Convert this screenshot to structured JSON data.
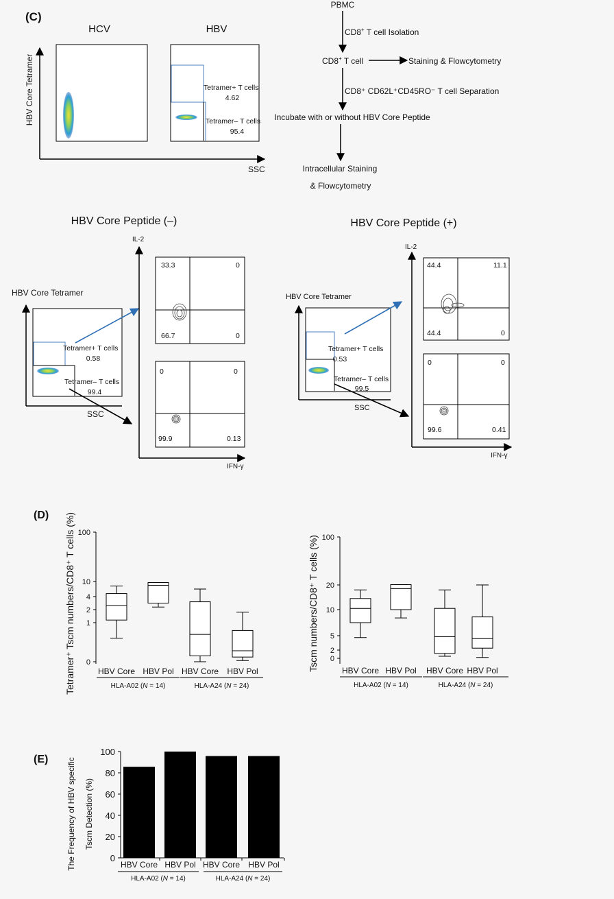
{
  "panel_c": {
    "label": "(C)",
    "hcv_title": "HCV",
    "hbv_title": "HBV",
    "ylabel": "HBV Core Tetramer",
    "xlabel": "SSC",
    "tetramer_pos_label": "Tetramer+ T cells",
    "tetramer_pos_value": "4.62",
    "tetramer_neg_label": "Tetramer– T cells",
    "tetramer_neg_value": "95.4"
  },
  "flowchart": {
    "pbmc": "PBMC",
    "step1_main": "CD8",
    "step1_sup": "+",
    "step1_rest": " T cell Isolation",
    "node2_main": "CD8",
    "node2_sup": "+",
    "node2_rest": " T cell",
    "side": "Staining & Flowcytometry",
    "step2": "CD8⁺ CD62L⁺CD45RO⁻ T cell Separation",
    "node3": "Incubate with or without HBV Core Peptide",
    "node4_l1": "Intracellular Staining",
    "node4_l2": "& Flowcytometry"
  },
  "peptide_neg": {
    "title": "HBV Core Peptide (–)",
    "tetramer_label": "HBV Core Tetramer",
    "ssc": "SSC",
    "il2": "IL-2",
    "ifng": "IFN-γ",
    "pos_label": "Tetramer+ T cells",
    "pos_value": "0.58",
    "neg_label": "Tetramer– T cells",
    "neg_value": "99.4",
    "top_q": [
      "33.3",
      "0",
      "66.7",
      "0"
    ],
    "bot_q": [
      "0",
      "0",
      "99.9",
      "0.13"
    ]
  },
  "peptide_pos": {
    "title": "HBV Core Peptide (+)",
    "tetramer_label": "HBV Core Tetramer",
    "ssc": "SSC",
    "il2": "IL-2",
    "ifng": "IFN-γ",
    "pos_label": "Tetramer+ T cells",
    "pos_value": "0.53",
    "neg_label": "Tetramer– T cells",
    "neg_value": "99.5",
    "top_q": [
      "44.4",
      "11.1",
      "44.4",
      "0"
    ],
    "bot_q": [
      "0",
      "0",
      "99.6",
      "0.41"
    ]
  },
  "panel_d": {
    "label": "(D)"
  },
  "panel_e": {
    "label": "(E)"
  },
  "chart_data": [
    {
      "type": "box",
      "ylabel": "Tetramer⁺ Tscm numbers/CD8⁺ T cells (%)",
      "yticks": [
        "0",
        "1",
        "2",
        "4",
        "10",
        "100"
      ],
      "categories": [
        "HBV Core",
        "HBV Pol",
        "HBV Core",
        "HBV Pol"
      ],
      "groups": [
        "HLA-A02 (N = 14)",
        "HLA-A24 (N = 24)"
      ],
      "boxes": [
        {
          "min": 0.6,
          "q1": 1.2,
          "median": 2.6,
          "q3": 5.2,
          "max": 8.2
        },
        {
          "min": 2.4,
          "q1": 3.0,
          "median": 8.5,
          "q3": 9.6,
          "max": 9.6
        },
        {
          "min": 0.0,
          "q1": 0.15,
          "median": 0.7,
          "q3": 3.2,
          "max": 7.0
        },
        {
          "min": 0.03,
          "q1": 0.12,
          "median": 0.28,
          "q3": 0.8,
          "max": 1.8
        }
      ]
    },
    {
      "type": "box",
      "ylabel": "Tscm numbers/CD8⁺ T cells (%)",
      "yticks": [
        "0",
        "2",
        "5",
        "10",
        "20",
        "100"
      ],
      "categories": [
        "HBV Core",
        "HBV Pol",
        "HBV Core",
        "HBV Pol"
      ],
      "groups": [
        "HLA-A02 (N = 14)",
        "HLA-A24 (N = 24)"
      ],
      "boxes": [
        {
          "min": 4.6,
          "q1": 7.5,
          "median": 10.5,
          "q3": 14.5,
          "max": 18
        },
        {
          "min": 8.4,
          "q1": 10.0,
          "median": 18.5,
          "q3": 20.5,
          "max": 20.5
        },
        {
          "min": 0.5,
          "q1": 1.2,
          "median": 4.8,
          "q3": 10.5,
          "max": 18
        },
        {
          "min": 0.2,
          "q1": 2.4,
          "median": 4.4,
          "q3": 8.6,
          "max": 20
        }
      ]
    },
    {
      "type": "bar",
      "ylabel": "The Frequency of HBV specific Tscm Detection (%)",
      "categories": [
        "HBV Core",
        "HBV Pol",
        "HBV Core",
        "HBV Pol"
      ],
      "groups": [
        "HLA-A02 (N = 14)",
        "HLA-A24 (N = 24)"
      ],
      "values": [
        85.7,
        100,
        95.8,
        95.8
      ],
      "ylim": [
        0,
        100
      ],
      "yticks": [
        0,
        20,
        40,
        60,
        80,
        100
      ]
    }
  ]
}
